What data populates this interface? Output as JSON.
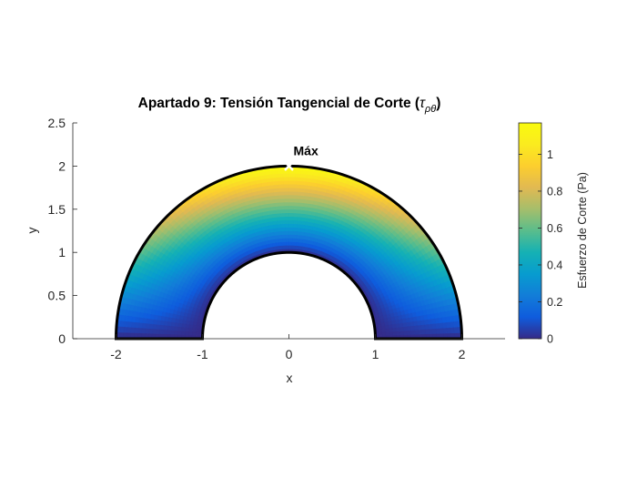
{
  "chart_data": {
    "type": "heatmap",
    "title_main": "Apartado 9: Tensión Tangencial de Corte (",
    "title_tau": "τ",
    "title_sub": "ρθ",
    "title_close": ")",
    "xlabel": "x",
    "ylabel": "y",
    "xlim": [
      -2.5,
      2.5
    ],
    "ylim": [
      0,
      2.5
    ],
    "xticks": [
      -2,
      -1,
      0,
      1,
      2
    ],
    "yticks": [
      0,
      0.5,
      1,
      1.5,
      2,
      2.5
    ],
    "xtick_labels": [
      "-2",
      "-1",
      "0",
      "1",
      "2"
    ],
    "ytick_labels": [
      "0",
      "0.5",
      "1",
      "1.5",
      "2",
      "2.5"
    ],
    "domain": {
      "shape": "half-annulus",
      "inner_radius": 1,
      "outer_radius": 2,
      "theta_range_deg": [
        0,
        180
      ]
    },
    "value_model": "tau = tau_max * ((r - r_inner)/(r_outer - r_inner)) * sin(theta)",
    "max_point": {
      "x": 0,
      "y": 2,
      "value": 1.17,
      "label": "Máx",
      "marker": "x"
    },
    "colorbar": {
      "label": "Esfuerzo de Corte (Pa)",
      "limits": [
        0,
        1.17
      ],
      "ticks": [
        0,
        0.2,
        0.4,
        0.6,
        0.8,
        1
      ],
      "tick_labels": [
        "0",
        "0.2",
        "0.4",
        "0.6",
        "0.8",
        "1"
      ],
      "colormap": "parula"
    },
    "colors": {
      "boundary": "#000000",
      "marker": "#ffffff",
      "axis": "#262626"
    }
  }
}
